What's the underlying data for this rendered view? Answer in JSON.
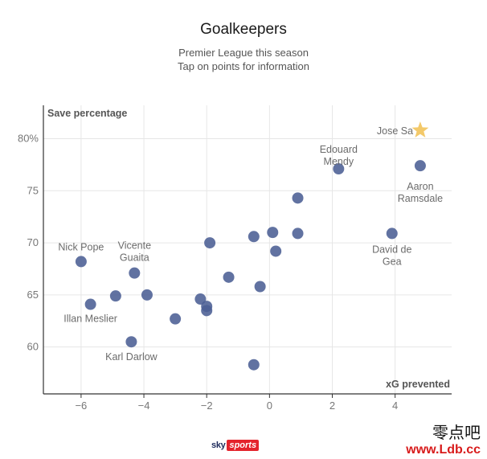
{
  "chart_data": {
    "type": "scatter",
    "title": "Goalkeepers",
    "subtitle": [
      "Premier League this season",
      "Tap on points for information"
    ],
    "xlabel": "xG prevented",
    "ylabel": "Save percentage",
    "xlim": [
      -7.2,
      5.8
    ],
    "ylim": [
      55.5,
      83.2
    ],
    "x_ticks": [
      -6,
      -4,
      -2,
      0,
      2,
      4
    ],
    "x_tick_labels": [
      "−6",
      "−4",
      "−2",
      "0",
      "2",
      "4"
    ],
    "y_ticks": [
      60,
      65,
      70,
      75,
      80
    ],
    "y_tick_labels": [
      "60",
      "65",
      "70",
      "75",
      "80%"
    ],
    "grid": true,
    "colors": {
      "point": "#4b5f94",
      "highlight": "#f3c96a",
      "label": "#6b6b6b",
      "axis": "#333333",
      "grid": "#e6e6e6"
    },
    "points": [
      {
        "x": 4.8,
        "y": 80.8,
        "label": [
          "Jose Sa"
        ],
        "highlight": true,
        "label_dx": -54,
        "label_dy": 5,
        "anchor": "start"
      },
      {
        "x": 2.2,
        "y": 77.1,
        "label": [
          "Edouard",
          "Mendy"
        ],
        "label_dx": 0,
        "label_dy": -20,
        "anchor": "middle"
      },
      {
        "x": 4.8,
        "y": 77.4,
        "label": [
          "Aaron",
          "Ramsdale"
        ],
        "label_dx": 0,
        "label_dy": 30,
        "anchor": "middle"
      },
      {
        "x": 0.9,
        "y": 74.3
      },
      {
        "x": 3.9,
        "y": 70.9,
        "label": [
          "David de",
          "Gea"
        ],
        "label_dx": 0,
        "label_dy": 24,
        "anchor": "middle"
      },
      {
        "x": 0.1,
        "y": 71.0
      },
      {
        "x": 0.9,
        "y": 70.9
      },
      {
        "x": -0.5,
        "y": 70.6
      },
      {
        "x": -1.9,
        "y": 70.0
      },
      {
        "x": 0.2,
        "y": 69.2
      },
      {
        "x": -6.0,
        "y": 68.2,
        "label": [
          "Nick Pope"
        ],
        "label_dx": 0,
        "label_dy": -14,
        "anchor": "middle"
      },
      {
        "x": -4.3,
        "y": 67.1,
        "label": [
          "Vicente",
          "Guaita"
        ],
        "label_dx": 0,
        "label_dy": -30,
        "anchor": "middle"
      },
      {
        "x": -1.3,
        "y": 66.7
      },
      {
        "x": -0.3,
        "y": 65.8
      },
      {
        "x": -3.9,
        "y": 65.0
      },
      {
        "x": -4.9,
        "y": 64.9
      },
      {
        "x": -2.2,
        "y": 64.6
      },
      {
        "x": -5.7,
        "y": 64.1,
        "label": [
          "Illan Meslier"
        ],
        "label_dx": 0,
        "label_dy": 22,
        "anchor": "middle"
      },
      {
        "x": -2.0,
        "y": 63.9
      },
      {
        "x": -2.0,
        "y": 63.5
      },
      {
        "x": -3.0,
        "y": 62.7
      },
      {
        "x": -4.4,
        "y": 60.5,
        "label": [
          "Karl Darlow"
        ],
        "label_dx": 0,
        "label_dy": 23,
        "anchor": "middle"
      },
      {
        "x": -0.5,
        "y": 58.3
      }
    ]
  },
  "footer": {
    "logo_sky": "sky",
    "logo_sports": "sports"
  },
  "watermark": {
    "chinese": "零点吧",
    "url": "www.Ldb.cc"
  }
}
